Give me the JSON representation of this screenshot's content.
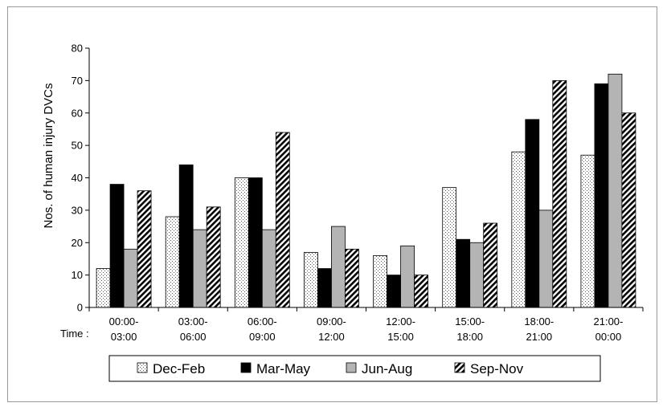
{
  "chart_data": {
    "type": "bar",
    "ylabel": "Nos. of human injury DVCs",
    "xlabel_prefix": "Time :",
    "ylim": [
      0,
      80
    ],
    "ytick_step": 10,
    "grid": false,
    "legend_position": "bottom",
    "categories": [
      [
        "00:00-",
        "03:00"
      ],
      [
        "03:00-",
        "06:00"
      ],
      [
        "06:00-",
        "09:00"
      ],
      [
        "09:00-",
        "12:00"
      ],
      [
        "12:00-",
        "15:00"
      ],
      [
        "15:00-",
        "18:00"
      ],
      [
        "18:00-",
        "21:00"
      ],
      [
        "21:00-",
        "00:00"
      ]
    ],
    "series": [
      {
        "name": "Dec-Feb",
        "pattern": "dots",
        "color": "#ffffff",
        "values": [
          12,
          28,
          40,
          17,
          16,
          37,
          48,
          47
        ]
      },
      {
        "name": "Mar-May",
        "pattern": "solid",
        "color": "#000000",
        "values": [
          38,
          44,
          40,
          12,
          10,
          21,
          58,
          69
        ]
      },
      {
        "name": "Jun-Aug",
        "pattern": "solid",
        "color": "#b4b4b4",
        "values": [
          18,
          24,
          24,
          25,
          19,
          20,
          30,
          72
        ]
      },
      {
        "name": "Sep-Nov",
        "pattern": "diagonal",
        "color": "#000000",
        "values": [
          36,
          31,
          54,
          18,
          10,
          26,
          70,
          60
        ]
      }
    ]
  }
}
